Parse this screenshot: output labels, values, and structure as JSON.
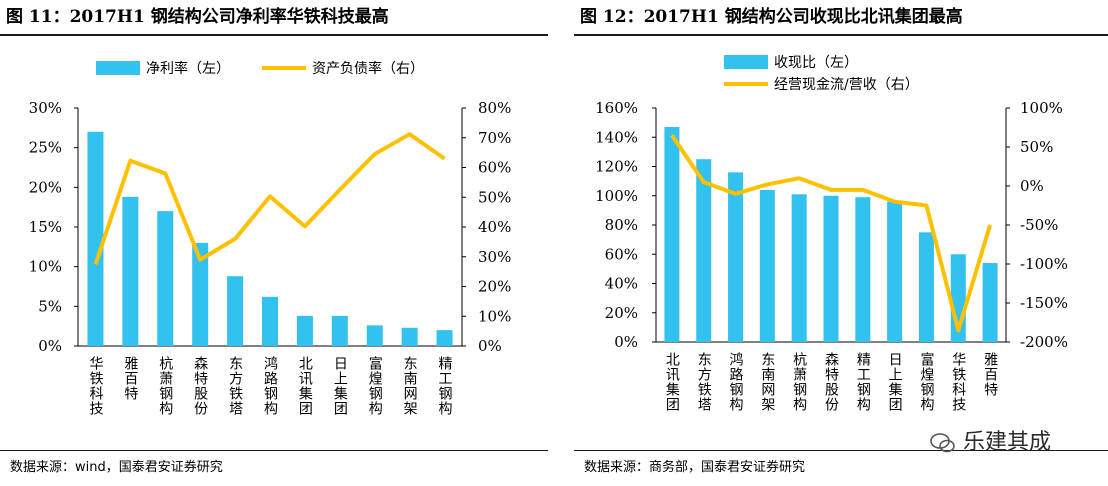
{
  "watermark": "乐建其成",
  "chart_data": [
    {
      "type": "bar",
      "title": "图 11：2017H1 钢结构公司净利率华铁科技最高",
      "source": "数据来源：wind，国泰君安证券研究",
      "categories": [
        "华铁科技",
        "雅百特",
        "杭萧钢构",
        "森特股份",
        "东方铁塔",
        "鸿路钢构",
        "北讯集团",
        "日上集团",
        "富煌钢构",
        "东南网架",
        "精工钢构"
      ],
      "series": [
        {
          "name": "净利率（左）",
          "kind": "bar",
          "axis": "left",
          "color": "#33c1f0",
          "values": [
            27.0,
            18.8,
            17.0,
            13.0,
            8.8,
            6.2,
            3.8,
            3.8,
            2.6,
            2.3,
            2.0
          ]
        },
        {
          "name": "资产负债率（右）",
          "kind": "line",
          "axis": "right",
          "color": "#ffc000",
          "values": [
            27.5,
            62.3,
            58.0,
            29.0,
            36.0,
            50.3,
            40.2,
            52.5,
            64.5,
            71.2,
            63.0
          ]
        }
      ],
      "ylim_left": [
        0,
        30
      ],
      "yticks_left": [
        "0%",
        "5%",
        "10%",
        "15%",
        "20%",
        "25%",
        "30%"
      ],
      "ylim_right": [
        0,
        80
      ],
      "yticks_right": [
        "0%",
        "10%",
        "20%",
        "30%",
        "40%",
        "50%",
        "60%",
        "70%",
        "80%"
      ],
      "legend_position": "top"
    },
    {
      "type": "bar",
      "title": "图 12：2017H1 钢结构公司收现比北讯集团最高",
      "source": "数据来源：商务部，国泰君安证券研究",
      "categories": [
        "北讯集团",
        "东方铁塔",
        "鸿路钢构",
        "东南网架",
        "杭萧钢构",
        "森特股份",
        "精工钢构",
        "日上集团",
        "富煌钢构",
        "华铁科技",
        "雅百特"
      ],
      "series": [
        {
          "name": "收现比（左）",
          "kind": "bar",
          "axis": "left",
          "color": "#33c1f0",
          "values": [
            147,
            125,
            116,
            104,
            101,
            100,
            99,
            96,
            75,
            60,
            54
          ]
        },
        {
          "name": "经营现金流/营收（右）",
          "kind": "line",
          "axis": "right",
          "color": "#ffc000",
          "values": [
            65,
            5,
            -10,
            2,
            10,
            -5,
            -5,
            -20,
            -25,
            -185,
            -50
          ]
        }
      ],
      "ylim_left": [
        0,
        160
      ],
      "yticks_left": [
        "0%",
        "20%",
        "40%",
        "60%",
        "80%",
        "100%",
        "120%",
        "140%",
        "160%"
      ],
      "ylim_right": [
        -200,
        100
      ],
      "yticks_right": [
        "-200%",
        "-150%",
        "-100%",
        "-50%",
        "0%",
        "50%",
        "100%"
      ],
      "legend_position": "top-left"
    }
  ]
}
